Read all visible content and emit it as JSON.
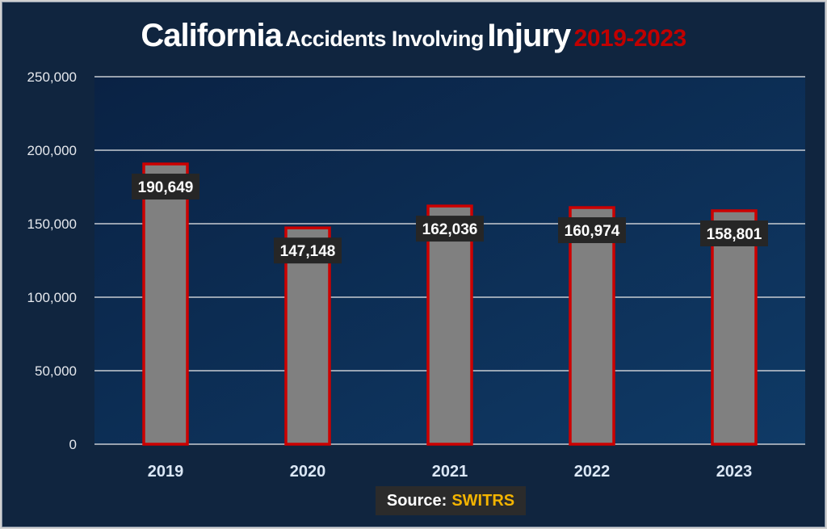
{
  "chart_data": {
    "type": "bar",
    "title": {
      "part1": "California",
      "part2": "Accidents Involving",
      "part3": "Injury",
      "part4": "2019-2023"
    },
    "categories": [
      "2019",
      "2020",
      "2021",
      "2022",
      "2023"
    ],
    "values": [
      190649,
      147148,
      162036,
      160974,
      158801
    ],
    "data_labels": [
      "190,649",
      "147,148",
      "162,036",
      "160,974",
      "158,801"
    ],
    "ylim": [
      0,
      250000
    ],
    "yticks": [
      0,
      50000,
      100000,
      150000,
      200000,
      250000
    ],
    "ytick_labels": [
      "0",
      "50,000",
      "100,000",
      "150,000",
      "200,000",
      "250,000"
    ],
    "grid": true,
    "xlabel": "",
    "ylabel": "",
    "colors": {
      "bar_fill": "#808080",
      "bar_border": "#cc0000",
      "label_bg": "#262626",
      "title_accent": "#c00000",
      "background": "#10253f"
    }
  },
  "source": {
    "label": "Source:",
    "value": "SWITRS"
  }
}
